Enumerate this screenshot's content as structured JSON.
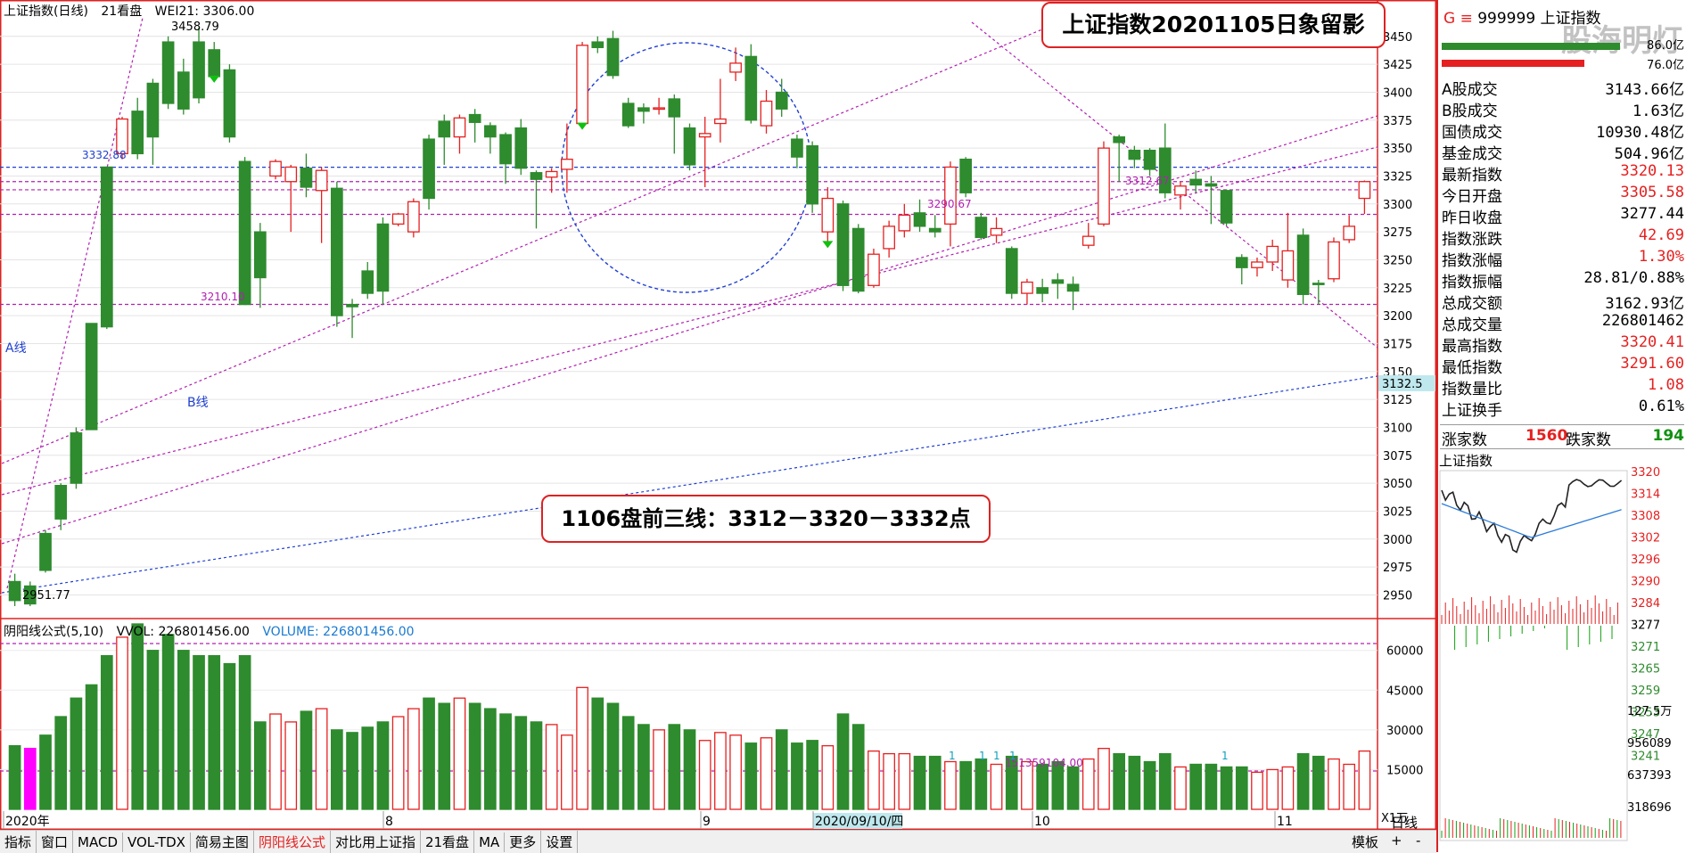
{
  "header": {
    "index_name": "上证指数(日线)",
    "period": "21看盘",
    "indicator": "WEI21: 3306.00"
  },
  "annotations": {
    "title_box": "上证指数20201105日象留影",
    "note_box": "1106盘前三线：3312－3320－3332点",
    "a_line": "A线",
    "b_line": "B线",
    "high_label": "3458.79",
    "low_label": "2951.77",
    "level_3332": "3332.88",
    "level_3210": "3210.10",
    "level_3290": "3290.67",
    "level_3312": "3312.67",
    "vol_mark": "151359104.00",
    "b_line_end": "3132.5",
    "tick_one": "1"
  },
  "volume_header": {
    "indicator": "阴阳线公式(5,10)",
    "vvol": "VVOL: 226801456.00",
    "volume": "VOLUME: 226801456.00"
  },
  "chart_data": {
    "type": "candlestick",
    "price_axis": {
      "ylim": [
        2940,
        3465
      ],
      "ticks": [
        2950,
        2975,
        3000,
        3025,
        3050,
        3075,
        3100,
        3125,
        3150,
        3175,
        3200,
        3225,
        3250,
        3275,
        3300,
        3325,
        3350,
        3375,
        3400,
        3425,
        3450
      ]
    },
    "volume_axis": {
      "ylim": [
        0,
        70000
      ],
      "ticks": [
        15000,
        30000,
        45000,
        60000
      ],
      "unit": "X1万"
    },
    "x_labels": [
      "2020年",
      "8",
      "9",
      "2020/09/10/四",
      "10",
      "11"
    ],
    "candles": [
      [
        2962,
        2945,
        2969,
        2940,
        0.5,
        24000
      ],
      [
        2958,
        2942,
        2962,
        2940,
        1.0,
        23000
      ],
      [
        3005,
        2972,
        3008,
        2970,
        0.63,
        28000
      ],
      [
        3048,
        3018,
        3050,
        3008,
        0.63,
        35000
      ],
      [
        3095,
        3050,
        3100,
        3045,
        0.63,
        42000
      ],
      [
        3193,
        3098,
        3193,
        3098,
        0.63,
        47000
      ],
      [
        3333,
        3190,
        3333,
        3188,
        0.63,
        58000
      ],
      [
        3345,
        3376,
        3378,
        3340,
        0.0,
        65000
      ],
      [
        3383,
        3345,
        3395,
        3340,
        0.63,
        70000
      ],
      [
        3408,
        3360,
        3412,
        3335,
        0.63,
        60000
      ],
      [
        3445,
        3390,
        3450,
        3385,
        0.63,
        66000
      ],
      [
        3418,
        3385,
        3430,
        3380,
        0.0,
        60000
      ],
      [
        3445,
        3395,
        3458,
        3390,
        0.63,
        58000
      ],
      [
        3438,
        3414,
        3445,
        3410,
        0.0,
        58000
      ],
      [
        3420,
        3360,
        3425,
        3355,
        0.0,
        55000
      ],
      [
        3338,
        3210,
        3342,
        3210,
        0.0,
        58000
      ],
      [
        3275,
        3234,
        3283,
        3207,
        0.63,
        33000
      ],
      [
        3325,
        3338,
        3340,
        3322,
        0.0,
        36000
      ],
      [
        3320,
        3333,
        3335,
        3275,
        0.0,
        33000
      ],
      [
        3332,
        3315,
        3345,
        3306,
        0.63,
        37000
      ],
      [
        3312,
        3330,
        3333,
        3265,
        0.0,
        38000
      ],
      [
        3314,
        3200,
        3320,
        3190,
        0.0,
        30000
      ],
      [
        3210,
        3208,
        3215,
        3180,
        0.0,
        29000
      ],
      [
        3240,
        3220,
        3248,
        3215,
        0.63,
        31000
      ],
      [
        3282,
        3222,
        3288,
        3210,
        0.63,
        33000
      ],
      [
        3282,
        3291,
        3292,
        3280,
        0.0,
        35000
      ],
      [
        3275,
        3302,
        3305,
        3270,
        0.63,
        38000
      ],
      [
        3358,
        3305,
        3362,
        3295,
        0.63,
        42000
      ],
      [
        3374,
        3360,
        3380,
        3335,
        0.0,
        40000
      ],
      [
        3360,
        3377,
        3380,
        3345,
        0.0,
        42000
      ],
      [
        3380,
        3373,
        3385,
        3355,
        0.0,
        40000
      ],
      [
        3370,
        3360,
        3373,
        3345,
        0.0,
        38000
      ],
      [
        3362,
        3336,
        3364,
        3318,
        0.0,
        36000
      ],
      [
        3368,
        3332,
        3376,
        3326,
        0.0,
        35000
      ],
      [
        3328,
        3322,
        3330,
        3278,
        0.0,
        33000
      ],
      [
        3324,
        3329,
        3332,
        3310,
        0.0,
        32000
      ],
      [
        3331,
        3340,
        3372,
        3310,
        0.0,
        28000
      ],
      [
        3372,
        3442,
        3445,
        3368,
        0.63,
        46000
      ],
      [
        3445,
        3440,
        3450,
        3435,
        0.0,
        42000
      ],
      [
        3448,
        3415,
        3455,
        3412,
        0.0,
        40000
      ],
      [
        3390,
        3370,
        3395,
        3368,
        0.0,
        35000
      ],
      [
        3386,
        3383,
        3390,
        3372,
        0.0,
        32000
      ],
      [
        3385,
        3386,
        3395,
        3380,
        0.0,
        30000
      ],
      [
        3394,
        3378,
        3398,
        3345,
        0.0,
        32000
      ],
      [
        3368,
        3335,
        3372,
        3330,
        0.0,
        30000
      ],
      [
        3360,
        3363,
        3378,
        3315,
        0.0,
        26000
      ],
      [
        3372,
        3376,
        3412,
        3355,
        0.63,
        29000
      ],
      [
        3418,
        3426,
        3440,
        3410,
        0.0,
        28000
      ],
      [
        3432,
        3375,
        3443,
        3372,
        0.0,
        25000
      ],
      [
        3370,
        3392,
        3402,
        3363,
        0.0,
        27000
      ],
      [
        3400,
        3385,
        3412,
        3378,
        0.0,
        30000
      ],
      [
        3358,
        3342,
        3362,
        3332,
        0.63,
        25000
      ],
      [
        3352,
        3300,
        3356,
        3292,
        0.0,
        26000
      ],
      [
        3275,
        3305,
        3315,
        3262,
        0.63,
        24000
      ],
      [
        3300,
        3227,
        3303,
        3222,
        0.0,
        36000
      ],
      [
        3278,
        3222,
        3282,
        3220,
        0.0,
        32000
      ],
      [
        3227,
        3255,
        3260,
        3225,
        0.0,
        22000
      ],
      [
        3260,
        3280,
        3285,
        3252,
        0.63,
        21000
      ],
      [
        3276,
        3290,
        3300,
        3270,
        0.63,
        21000
      ],
      [
        3292,
        3280,
        3304,
        3275,
        0.63,
        20000
      ],
      [
        3278,
        3275,
        3290,
        3270,
        0.0,
        20000
      ],
      [
        3282,
        3333,
        3338,
        3262,
        0.63,
        18000
      ],
      [
        3340,
        3310,
        3342,
        3306,
        0.0,
        18000
      ],
      [
        3288,
        3270,
        3292,
        3268,
        0.0,
        19000
      ],
      [
        3272,
        3278,
        3288,
        3265,
        0.0,
        17000
      ],
      [
        3260,
        3220,
        3262,
        3215,
        0.0,
        20000
      ],
      [
        3220,
        3230,
        3233,
        3210,
        0.0,
        18000
      ],
      [
        3225,
        3220,
        3233,
        3212,
        0.0,
        17000
      ],
      [
        3232,
        3229,
        3238,
        3215,
        0.0,
        18000
      ],
      [
        3228,
        3222,
        3235,
        3205,
        0.0,
        16000
      ],
      [
        3263,
        3271,
        3283,
        3260,
        0.63,
        19000
      ],
      [
        3282,
        3350,
        3356,
        3280,
        0.63,
        23000
      ],
      [
        3360,
        3355,
        3362,
        3320,
        0.0,
        21000
      ],
      [
        3348,
        3340,
        3352,
        3332,
        0.0,
        20000
      ],
      [
        3348,
        3331,
        3350,
        3325,
        0.0,
        18000
      ],
      [
        3350,
        3310,
        3372,
        3305,
        0.0,
        21000
      ],
      [
        3308,
        3316,
        3320,
        3295,
        0.63,
        16000
      ],
      [
        3322,
        3317,
        3330,
        3310,
        0.0,
        17000
      ],
      [
        3318,
        3316,
        3325,
        3282,
        0.0,
        17000
      ],
      [
        3312,
        3283,
        3313,
        3280,
        0.0,
        16000
      ],
      [
        3252,
        3243,
        3255,
        3228,
        0.0,
        16000
      ],
      [
        3243,
        3248,
        3252,
        3235,
        0.0,
        14000
      ],
      [
        3248,
        3262,
        3268,
        3240,
        0.63,
        15000
      ],
      [
        3232,
        3258,
        3292,
        3225,
        0.0,
        16000
      ],
      [
        3272,
        3219,
        3278,
        3210,
        0.0,
        21000
      ],
      [
        3229,
        3228,
        3232,
        3210,
        0.0,
        20000
      ],
      [
        3233,
        3266,
        3270,
        3230,
        0.63,
        19000
      ],
      [
        3268,
        3280,
        3290,
        3265,
        0.63,
        17000
      ],
      [
        3305,
        3320,
        3321,
        3291,
        0.63,
        22000
      ]
    ]
  },
  "right_panel": {
    "code": "999999 上证指数",
    "ratio_top": "86.0亿",
    "ratio_bottom": "76.0亿",
    "rows": [
      {
        "label": "A股成交",
        "value": "3143.66亿",
        "color": "black"
      },
      {
        "label": "B股成交",
        "value": "1.63亿",
        "color": "black"
      },
      {
        "label": "国债成交",
        "value": "10930.48亿",
        "color": "black"
      },
      {
        "label": "基金成交",
        "value": "504.96亿",
        "color": "black"
      },
      {
        "label": "最新指数",
        "value": "3320.13",
        "color": "red"
      },
      {
        "label": "今日开盘",
        "value": "3305.58",
        "color": "red"
      },
      {
        "label": "昨日收盘",
        "value": "3277.44",
        "color": "black"
      },
      {
        "label": "指数涨跌",
        "value": "42.69",
        "color": "red"
      },
      {
        "label": "指数涨幅",
        "value": "1.30%",
        "color": "red"
      },
      {
        "label": "指数振幅",
        "value": "28.81/0.88%",
        "color": "black"
      },
      {
        "label": "总成交额",
        "value": "3162.93亿",
        "color": "black"
      },
      {
        "label": "总成交量",
        "value": "226801462",
        "color": "black"
      },
      {
        "label": "最高指数",
        "value": "3320.41",
        "color": "red"
      },
      {
        "label": "最低指数",
        "value": "3291.60",
        "color": "red"
      },
      {
        "label": "指数量比",
        "value": "1.08",
        "color": "red"
      },
      {
        "label": "上证换手",
        "value": "0.61%",
        "color": "black"
      }
    ],
    "up_label": "涨家数",
    "up_count": "1560",
    "down_label": "跌家数",
    "down_count": "194",
    "mini_title": "上证指数",
    "mini_scale": [
      "3320",
      "3314",
      "3308",
      "3302",
      "3296",
      "3290",
      "3284",
      "3277",
      "3271",
      "3265",
      "3259",
      "3253",
      "3247",
      "3241"
    ],
    "mini_vol": [
      "127.5万",
      "956089",
      "637393",
      "318696"
    ],
    "watermark": "股海明灯"
  },
  "toolbar": {
    "items": [
      "指标",
      "窗口",
      "MACD",
      "VOL-TDX",
      "简易主图",
      "阴阳线公式",
      "对比用上证指",
      "21看盘",
      "MA",
      "更多",
      "设置"
    ],
    "active": "阴阳线公式",
    "right_items": [
      "模板",
      "+",
      "-"
    ],
    "period": "日线"
  },
  "colors": {
    "up": "#e52020",
    "down": "#2e8b2e",
    "pink": "#ff00ff",
    "guide": "#2040d0",
    "trend": "#b020b0"
  }
}
